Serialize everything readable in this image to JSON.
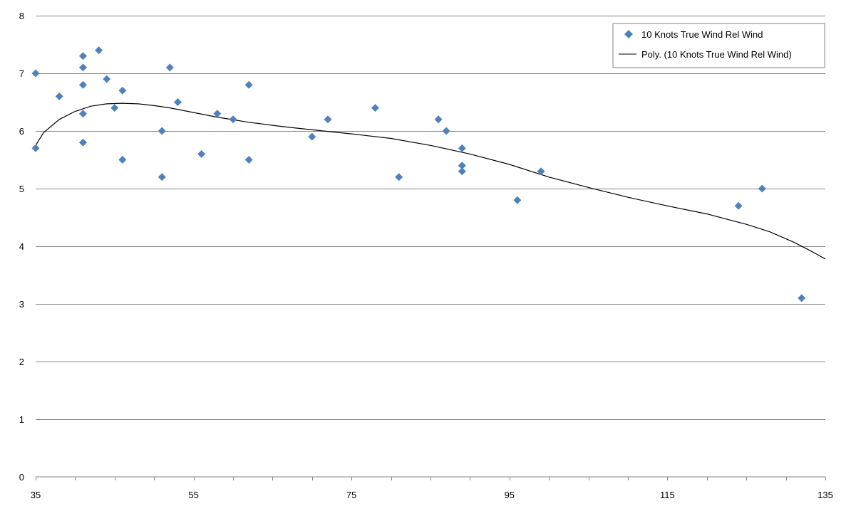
{
  "chart_data": {
    "type": "scatter",
    "title": "",
    "xlabel": "",
    "ylabel": "",
    "xlim": [
      35,
      135
    ],
    "ylim": [
      0,
      8
    ],
    "x_ticks": [
      35,
      55,
      75,
      95,
      115,
      135
    ],
    "x_tick_labels": [
      "35",
      "55",
      "75",
      "95",
      "115",
      "135"
    ],
    "y_ticks": [
      0,
      1,
      2,
      3,
      4,
      5,
      6,
      7,
      8
    ],
    "y_tick_labels": [
      "0",
      "1",
      "2",
      "3",
      "4",
      "5",
      "6",
      "7",
      "8"
    ],
    "grid": "horizontal",
    "legend_position": "top-right",
    "series": [
      {
        "name": "10 Knots True Wind Rel Wind",
        "marker": "diamond",
        "color": "#4F81BD",
        "points": [
          [
            35,
            7.0
          ],
          [
            35,
            5.7
          ],
          [
            38,
            6.6
          ],
          [
            41,
            7.3
          ],
          [
            41,
            7.1
          ],
          [
            41,
            6.8
          ],
          [
            41,
            6.3
          ],
          [
            41,
            5.8
          ],
          [
            43,
            7.4
          ],
          [
            44,
            6.9
          ],
          [
            45,
            6.4
          ],
          [
            46,
            6.7
          ],
          [
            46,
            5.5
          ],
          [
            51,
            6.0
          ],
          [
            51,
            5.2
          ],
          [
            52,
            7.1
          ],
          [
            53,
            6.5
          ],
          [
            56,
            5.6
          ],
          [
            58,
            6.3
          ],
          [
            60,
            6.2
          ],
          [
            62,
            6.8
          ],
          [
            62,
            5.5
          ],
          [
            70,
            5.9
          ],
          [
            72,
            6.2
          ],
          [
            78,
            6.4
          ],
          [
            81,
            5.2
          ],
          [
            86,
            6.2
          ],
          [
            87,
            6.0
          ],
          [
            89,
            5.7
          ],
          [
            89,
            5.4
          ],
          [
            89,
            5.3
          ],
          [
            96,
            4.8
          ],
          [
            99,
            5.3
          ],
          [
            124,
            4.7
          ],
          [
            127,
            5.0
          ],
          [
            132,
            3.1
          ]
        ]
      },
      {
        "name": "Poly. (10 Knots True Wind Rel Wind)",
        "type": "trendline",
        "color": "#000000",
        "points": [
          [
            35,
            5.75
          ],
          [
            36,
            5.97
          ],
          [
            38,
            6.2
          ],
          [
            40,
            6.34
          ],
          [
            42,
            6.43
          ],
          [
            44,
            6.47
          ],
          [
            46,
            6.48
          ],
          [
            48,
            6.47
          ],
          [
            50,
            6.44
          ],
          [
            52,
            6.4
          ],
          [
            55,
            6.32
          ],
          [
            58,
            6.24
          ],
          [
            62,
            6.15
          ],
          [
            66,
            6.08
          ],
          [
            70,
            6.02
          ],
          [
            75,
            5.95
          ],
          [
            80,
            5.87
          ],
          [
            85,
            5.75
          ],
          [
            90,
            5.6
          ],
          [
            95,
            5.42
          ],
          [
            100,
            5.2
          ],
          [
            105,
            5.02
          ],
          [
            110,
            4.85
          ],
          [
            115,
            4.7
          ],
          [
            120,
            4.56
          ],
          [
            125,
            4.38
          ],
          [
            128,
            4.25
          ],
          [
            131,
            4.07
          ],
          [
            133,
            3.93
          ],
          [
            135,
            3.78
          ]
        ]
      }
    ]
  }
}
